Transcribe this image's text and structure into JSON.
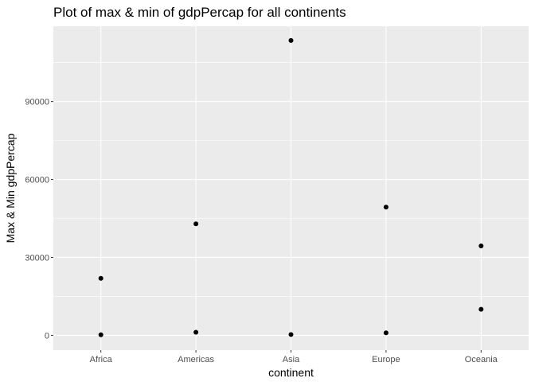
{
  "chart_data": {
    "type": "scatter",
    "title": "Plot of max & min of gdpPercap for all continents",
    "xlabel": "continent",
    "ylabel": "Max & Min gdpPercap",
    "categories": [
      "Africa",
      "Americas",
      "Asia",
      "Europe",
      "Oceania"
    ],
    "ylim": [
      -5700,
      119000
    ],
    "yticks": [
      0,
      30000,
      60000,
      90000
    ],
    "grid": true,
    "series": [
      {
        "name": "max",
        "values": [
          21951,
          42952,
          113523,
          49357,
          34435
        ]
      },
      {
        "name": "min",
        "values": [
          241,
          1202,
          331,
          974,
          10040
        ]
      }
    ],
    "colors": {
      "panel": "#ebebeb",
      "grid_major": "#ffffff",
      "point": "#000000",
      "tick_text": "#4d4d4d",
      "tick_mark": "#333333"
    }
  }
}
